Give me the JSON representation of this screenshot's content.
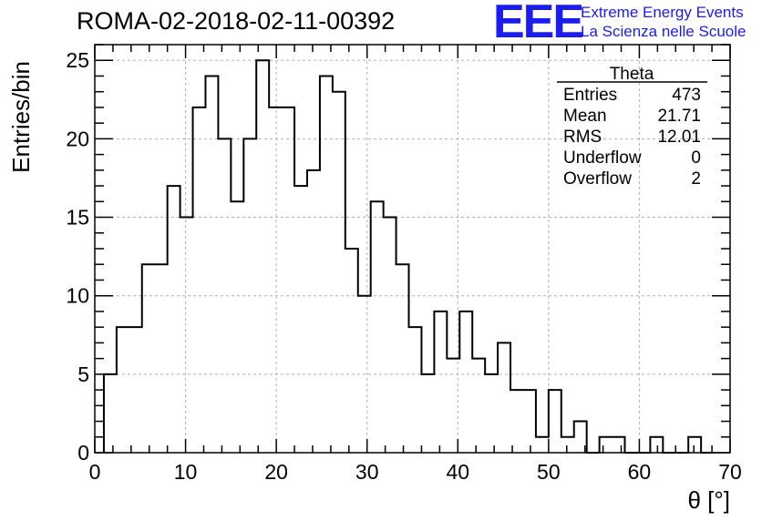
{
  "header": {
    "title": "ROMA-02-2018-02-11-00392",
    "logo_text": "EEE",
    "subtitle_line1": "Extreme Energy Events",
    "subtitle_line2": "La Scienza nelle Scuole"
  },
  "colors": {
    "logo": "#1c1cf0",
    "line": "#000000",
    "grid": "#b0b0b0"
  },
  "stats": {
    "title": "Theta",
    "rows": [
      {
        "label": "Entries",
        "value": "473"
      },
      {
        "label": "Mean",
        "value": "21.71"
      },
      {
        "label": "RMS",
        "value": "12.01"
      },
      {
        "label": "Underflow",
        "value": "0"
      },
      {
        "label": "Overflow",
        "value": "2"
      }
    ]
  },
  "chart_data": {
    "type": "histogram",
    "title": "ROMA-02-2018-02-11-00392",
    "xlabel": "θ [°]",
    "ylabel": "Entries/bin",
    "xlim": [
      0,
      70
    ],
    "ylim": [
      0,
      26
    ],
    "bin_width": 1.4,
    "bin_start": 1.0,
    "x_ticks": [
      0,
      10,
      20,
      30,
      40,
      50,
      60,
      70
    ],
    "y_ticks": [
      0,
      5,
      10,
      15,
      20,
      25
    ],
    "grid": true,
    "legend_placement": "top-right",
    "values": [
      5,
      8,
      8,
      12,
      12,
      17,
      15,
      22,
      24,
      20,
      16,
      20,
      25,
      22,
      22,
      17,
      18,
      24,
      23,
      13,
      10,
      16,
      15,
      12,
      8,
      5,
      9,
      6,
      9,
      6,
      5,
      7,
      4,
      4,
      1,
      4,
      1,
      2,
      0,
      1,
      1,
      0,
      0,
      1,
      0,
      0,
      1,
      0
    ]
  }
}
